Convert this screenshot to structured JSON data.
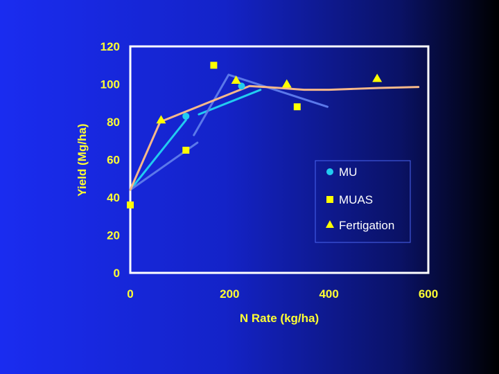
{
  "chart_data": {
    "type": "scatter",
    "title": "",
    "xlabel": "N Rate (kg/ha)",
    "ylabel": "Yield (Mg/ha)",
    "xlim": [
      0,
      600
    ],
    "ylim": [
      0,
      120
    ],
    "x_ticks": [
      0,
      200,
      400,
      600
    ],
    "y_ticks": [
      0,
      20,
      40,
      60,
      80,
      100,
      120
    ],
    "x_tick_labels": [
      "0",
      "200",
      "400",
      "600"
    ],
    "y_tick_labels": [
      "0",
      "20",
      "40",
      "60",
      "80",
      "100",
      "120"
    ],
    "grid": false,
    "legend_position": "right-middle",
    "legend": [
      "MU",
      "MUAS",
      "Fertigation"
    ],
    "series": [
      {
        "name": "MU",
        "marker": "circle",
        "color": "#22ccf0",
        "points": [
          [
            112,
            83
          ],
          [
            224,
            99
          ]
        ]
      },
      {
        "name": "MUAS",
        "marker": "square",
        "color": "#ffff00",
        "points": [
          [
            0,
            36
          ],
          [
            112,
            65
          ],
          [
            168,
            110
          ],
          [
            336,
            88
          ]
        ]
      },
      {
        "name": "Fertigation",
        "marker": "triangle",
        "color": "#ffff00",
        "points": [
          [
            62,
            81
          ],
          [
            213,
            102
          ],
          [
            315,
            100
          ],
          [
            497,
            103
          ]
        ]
      }
    ],
    "fit_lines": [
      {
        "series": "MU",
        "color": "#22ccf0",
        "segments": [
          [
            [
              0,
              44
            ],
            [
              112,
              81
            ]
          ],
          [
            [
              138,
              84
            ],
            [
              262,
              97
            ]
          ]
        ]
      },
      {
        "series": "MUAS",
        "color": "#5b78ea",
        "segments": [
          [
            [
              0,
              44
            ],
            [
              135,
              69
            ]
          ],
          [
            [
              128,
              73
            ],
            [
              198,
              105
            ],
            [
              397,
              88
            ]
          ]
        ]
      },
      {
        "series": "Fertigation",
        "color": "#f7b98a",
        "curve": [
          [
            0,
            44
          ],
          [
            60,
            80
          ],
          [
            240,
            99
          ],
          [
            300,
            98
          ],
          [
            350,
            97
          ],
          [
            400,
            97
          ],
          [
            450,
            97.5
          ],
          [
            500,
            98
          ],
          [
            580,
            98.5
          ]
        ]
      }
    ]
  }
}
